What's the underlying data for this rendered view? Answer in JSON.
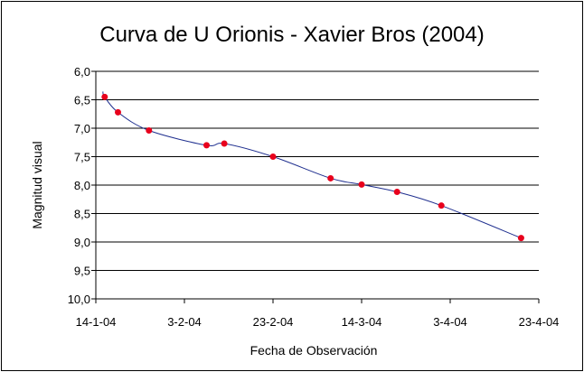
{
  "chart_data": {
    "type": "scatter",
    "title": "Curva de U Orionis - Xavier Bros (2004)",
    "xlabel": "Fecha de Observación",
    "ylabel": "Magnitud visual",
    "x_ticks": [
      "14-1-04",
      "3-2-04",
      "23-2-04",
      "14-3-04",
      "3-4-04",
      "23-4-04"
    ],
    "y_ticks": [
      "6,0",
      "6,5",
      "7,0",
      "7,5",
      "8,0",
      "8,5",
      "9,0",
      "9,5",
      "10,0"
    ],
    "xlim": [
      "2004-01-14",
      "2004-04-23"
    ],
    "ylim": [
      10.0,
      6.0
    ],
    "y_reversed": true,
    "grid": "horizontal",
    "series": [
      {
        "marker_color": "#e8001c",
        "points": [
          {
            "x": "2004-01-16",
            "y": 6.45
          },
          {
            "x": "2004-01-19",
            "y": 6.72
          },
          {
            "x": "2004-01-26",
            "y": 7.04
          },
          {
            "x": "2004-02-08",
            "y": 7.3
          },
          {
            "x": "2004-02-12",
            "y": 7.27
          },
          {
            "x": "2004-02-23",
            "y": 7.5
          },
          {
            "x": "2004-03-07",
            "y": 7.88
          },
          {
            "x": "2004-03-14",
            "y": 7.99
          },
          {
            "x": "2004-03-22",
            "y": 8.12
          },
          {
            "x": "2004-04-01",
            "y": 8.36
          },
          {
            "x": "2004-04-19",
            "y": 8.93
          }
        ]
      }
    ],
    "trendline_color": "#1f2f8f"
  }
}
